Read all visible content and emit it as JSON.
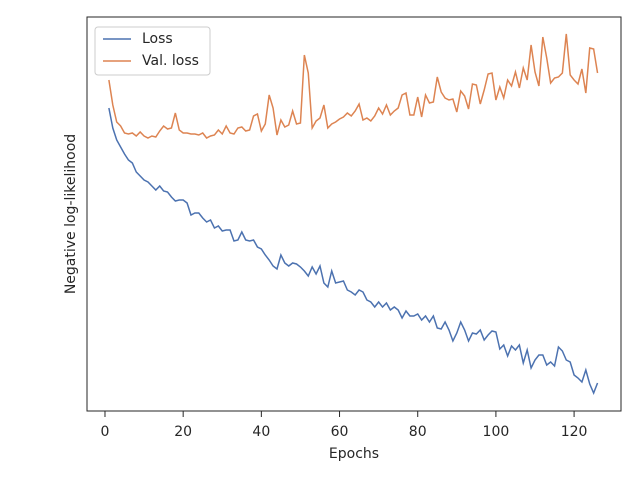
{
  "chart_data": {
    "type": "line",
    "x_label": "Epochs",
    "y_label": "Negative log-likelihood",
    "x": [
      1,
      2,
      3,
      4,
      5,
      6,
      7,
      8,
      9,
      10,
      11,
      12,
      13,
      14,
      15,
      16,
      17,
      18,
      19,
      20,
      21,
      22,
      23,
      24,
      25,
      26,
      27,
      28,
      29,
      30,
      31,
      32,
      33,
      34,
      35,
      36,
      37,
      38,
      39,
      40,
      41,
      42,
      43,
      44,
      45,
      46,
      47,
      48,
      49,
      50,
      51,
      52,
      53,
      54,
      55,
      56,
      57,
      58,
      59,
      60,
      61,
      62,
      63,
      64,
      65,
      66,
      67,
      68,
      69,
      70,
      71,
      72,
      73,
      74,
      75,
      76,
      77,
      78,
      79,
      80,
      81,
      82,
      83,
      84,
      85,
      86,
      87,
      88,
      89,
      90,
      91,
      92,
      93,
      94,
      95,
      96,
      97,
      98,
      99,
      100,
      101,
      102,
      103,
      104,
      105,
      106,
      107,
      108,
      109,
      110,
      111,
      112,
      113,
      114,
      115,
      116,
      117,
      118,
      119,
      120,
      121,
      122,
      123,
      124,
      125,
      126
    ],
    "series": [
      {
        "name": "Loss",
        "color": "#4c72b0",
        "values": [
          303,
          283,
          271,
          264,
          257,
          251,
          248,
          239,
          235,
          231,
          229,
          225,
          221,
          225,
          220,
          219,
          214,
          210,
          211,
          211,
          208,
          196,
          198,
          198,
          193,
          189,
          191,
          183,
          185,
          180,
          181,
          181,
          170,
          171,
          179,
          171,
          170,
          171,
          164,
          162,
          156,
          151,
          145,
          142,
          156,
          148,
          145,
          148,
          147,
          144,
          140,
          135,
          144,
          137,
          145,
          128,
          124,
          140,
          128,
          129,
          130,
          121,
          119,
          116,
          121,
          119,
          111,
          109,
          104,
          109,
          104,
          108,
          101,
          104,
          101,
          93,
          100,
          95,
          95,
          97,
          91,
          95,
          89,
          95,
          83,
          82,
          89,
          81,
          70,
          78,
          89,
          81,
          70,
          78,
          77,
          81,
          71,
          76,
          80,
          79,
          62,
          66,
          55,
          65,
          61,
          66,
          48,
          61,
          43,
          51,
          56,
          56,
          46,
          49,
          45,
          64,
          60,
          51,
          49,
          36,
          33,
          29,
          41,
          27,
          18,
          28
        ]
      },
      {
        "name": "Val. loss",
        "color": "#dd8452",
        "values": [
          331,
          306,
          289,
          285,
          278,
          277,
          278,
          275,
          279,
          275,
          273,
          275,
          274,
          280,
          285,
          282,
          283,
          298,
          281,
          278,
          278,
          277,
          277,
          276,
          278,
          273,
          275,
          276,
          281,
          277,
          285,
          278,
          277,
          283,
          284,
          280,
          281,
          295,
          297,
          280,
          287,
          316,
          303,
          276,
          291,
          284,
          286,
          300,
          287,
          288,
          356,
          338,
          283,
          290,
          293,
          306,
          283,
          287,
          289,
          292,
          294,
          298,
          295,
          300,
          307,
          291,
          293,
          290,
          295,
          303,
          297,
          306,
          296,
          300,
          303,
          316,
          318,
          296,
          296,
          314,
          294,
          316,
          308,
          309,
          334,
          319,
          313,
          311,
          312,
          299,
          320,
          315,
          302,
          327,
          326,
          307,
          321,
          337,
          338,
          311,
          324,
          313,
          331,
          325,
          339,
          323,
          343,
          331,
          366,
          339,
          325,
          374,
          353,
          328,
          333,
          334,
          338,
          377,
          336,
          331,
          327,
          342,
          318,
          363,
          362,
          338
        ]
      }
    ],
    "xlim": [
      -4.6,
      132
    ],
    "xticks": [
      0,
      20,
      40,
      60,
      80,
      100,
      120
    ],
    "ylim": [
      0,
      394
    ],
    "legend": "upper left"
  }
}
